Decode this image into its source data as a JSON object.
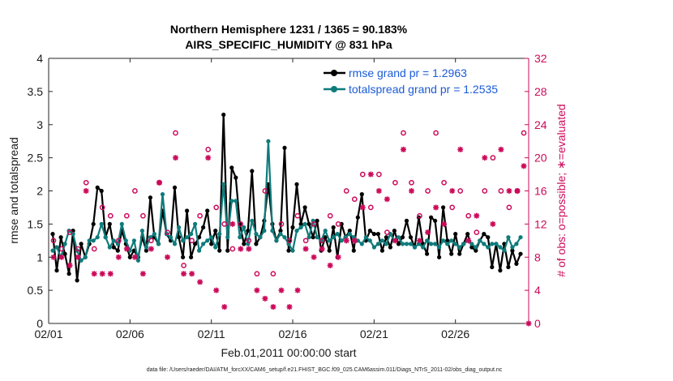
{
  "chart_data": {
    "type": "line",
    "title": "Northern Hemisphere 1231 / 1365 = 90.183%",
    "subtitle": "AIRS_SPECIFIC_HUMIDITY @ 831 hPa",
    "xlabel": "Feb.01,2011 00:00:00 start",
    "ylabel": "rmse and totalspread",
    "y2label": "# of obs: o=possible; ∗=evaluated",
    "xlim": [
      0,
      29.5
    ],
    "ylim": [
      0,
      4
    ],
    "y2lim": [
      0,
      32
    ],
    "xticks": [
      0,
      5,
      10,
      15,
      20,
      25
    ],
    "xtick_labels": [
      "02/01",
      "02/06",
      "02/11",
      "02/16",
      "02/21",
      "02/26"
    ],
    "yticks": [
      0,
      0.5,
      1,
      1.5,
      2,
      2.5,
      3,
      3.5,
      4
    ],
    "ytick_labels": [
      "0",
      "0.5",
      "1",
      "1.5",
      "2",
      "2.5",
      "3",
      "3.5",
      "4"
    ],
    "y2ticks": [
      0,
      4,
      8,
      12,
      16,
      20,
      24,
      28,
      32
    ],
    "y2tick_labels": [
      "0",
      "4",
      "8",
      "12",
      "16",
      "20",
      "24",
      "28",
      "32"
    ],
    "legend": {
      "position": "top-right",
      "entries": [
        "rmse grand pr = 1.2963",
        "totalspread grand pr = 1.2535"
      ]
    },
    "colors": {
      "rmse": "#000000",
      "spread": "#0f7b7b",
      "obs": "#cc0a5a",
      "legend_text": "#1a5bd6"
    },
    "x": [
      0.25,
      0.5,
      0.75,
      1,
      1.25,
      1.5,
      1.75,
      2,
      2.25,
      2.5,
      2.75,
      3,
      3.25,
      3.5,
      3.75,
      4,
      4.25,
      4.5,
      4.75,
      5,
      5.25,
      5.5,
      5.75,
      6,
      6.25,
      6.5,
      6.75,
      7,
      7.25,
      7.5,
      7.75,
      8,
      8.25,
      8.5,
      8.75,
      9,
      9.25,
      9.5,
      9.75,
      10,
      10.25,
      10.5,
      10.75,
      11,
      11.25,
      11.5,
      11.75,
      12,
      12.25,
      12.5,
      12.75,
      13,
      13.25,
      13.5,
      13.75,
      14,
      14.25,
      14.5,
      14.75,
      15,
      15.25,
      15.5,
      15.75,
      16,
      16.25,
      16.5,
      16.75,
      17,
      17.25,
      17.5,
      17.75,
      18,
      18.25,
      18.5,
      18.75,
      19,
      19.25,
      19.5,
      19.75,
      20,
      20.25,
      20.5,
      20.75,
      21,
      21.25,
      21.5,
      21.75,
      22,
      22.25,
      22.5,
      22.75,
      23,
      23.25,
      23.5,
      23.75,
      24,
      24.25,
      24.5,
      24.75,
      25,
      25.25,
      25.5,
      25.75,
      26,
      26.25,
      26.5,
      26.75,
      27,
      27.25,
      27.5,
      27.75,
      28,
      28.25,
      28.5,
      28.75,
      29
    ],
    "series": [
      {
        "name": "rmse",
        "values": [
          1.35,
          0.8,
          1.3,
          1.05,
          0.75,
          1.4,
          0.65,
          1.2,
          1.0,
          1.2,
          1.5,
          2.05,
          2.0,
          1.3,
          1.5,
          1.15,
          1.1,
          1.4,
          1.2,
          1.0,
          1.1,
          1.0,
          1.3,
          1.1,
          1.9,
          1.3,
          1.2,
          1.7,
          1.35,
          1.25,
          2.05,
          1.3,
          1.0,
          1.7,
          1.0,
          1.2,
          1.3,
          1.45,
          1.7,
          1.2,
          1.4,
          1.1,
          3.15,
          1.1,
          2.35,
          2.2,
          1.5,
          1.2,
          1.4,
          2.3,
          1.2,
          1.3,
          1.55,
          2.1,
          1.5,
          1.25,
          1.4,
          2.65,
          1.1,
          1.45,
          2.1,
          1.5,
          1.75,
          1.5,
          1.3,
          1.55,
          1.1,
          1.3,
          1.1,
          1.45,
          1.0,
          1.5,
          1.3,
          1.4,
          1.1,
          1.6,
          1.95,
          1.25,
          1.4,
          1.35,
          1.35,
          1.1,
          1.3,
          1.15,
          1.4,
          1.2,
          1.3,
          1.55,
          1.3,
          1.15,
          1.6,
          1.2,
          1.05,
          1.6,
          1.55,
          1.0,
          1.75,
          1.25,
          1.05,
          1.35,
          1.05,
          1.2,
          1.35,
          1.15,
          1.1,
          1.25,
          1.35,
          1.3,
          0.85,
          1.2,
          0.8,
          1.2,
          0.85,
          1.1,
          0.9,
          1.05
        ]
      },
      {
        "name": "totalspread",
        "values": [
          1.1,
          1.15,
          1.0,
          1.2,
          1.4,
          1.35,
          1.1,
          0.95,
          1.0,
          1.25,
          1.25,
          1.3,
          1.5,
          1.3,
          1.15,
          1.25,
          1.2,
          1.5,
          1.25,
          1.1,
          1.25,
          0.95,
          1.4,
          1.15,
          1.3,
          1.35,
          1.2,
          1.95,
          1.35,
          1.3,
          1.2,
          1.45,
          1.25,
          1.3,
          1.35,
          1.5,
          1.1,
          1.2,
          1.25,
          1.3,
          1.15,
          1.35,
          2.1,
          1.3,
          1.85,
          1.85,
          1.3,
          1.45,
          1.2,
          1.55,
          1.35,
          1.3,
          1.4,
          2.75,
          1.4,
          1.25,
          1.35,
          1.3,
          1.2,
          1.1,
          1.4,
          1.45,
          1.5,
          1.3,
          1.55,
          1.3,
          1.25,
          1.4,
          1.25,
          1.3,
          1.35,
          1.25,
          1.3,
          1.35,
          1.3,
          1.25,
          1.2,
          1.3,
          1.25,
          1.15,
          1.2,
          1.25,
          1.2,
          1.35,
          1.25,
          1.3,
          1.2,
          1.2,
          1.2,
          1.15,
          1.2,
          1.15,
          1.25,
          1.2,
          1.2,
          1.15,
          1.25,
          1.2,
          1.25,
          1.2,
          1.15,
          1.2,
          1.25,
          1.2,
          1.15,
          1.25,
          1.2,
          1.15,
          1.2,
          1.2,
          1.15,
          1.1,
          1.3,
          1.15,
          1.2,
          1.3
        ]
      }
    ],
    "obs_possible": [
      [
        0.3,
        10
      ],
      [
        0.8,
        9
      ],
      [
        1.3,
        11
      ],
      [
        1.8,
        9
      ],
      [
        2.3,
        17
      ],
      [
        2.8,
        9
      ],
      [
        3.3,
        14
      ],
      [
        3.8,
        13
      ],
      [
        4.3,
        10
      ],
      [
        4.8,
        13
      ],
      [
        5.3,
        16
      ],
      [
        5.8,
        13
      ],
      [
        6.3,
        10
      ],
      [
        6.8,
        17
      ],
      [
        7.3,
        11
      ],
      [
        7.8,
        23
      ],
      [
        8.3,
        7
      ],
      [
        8.8,
        10
      ],
      [
        9.3,
        13
      ],
      [
        9.8,
        21
      ],
      [
        10.3,
        14
      ],
      [
        10.8,
        12
      ],
      [
        11.3,
        9
      ],
      [
        11.8,
        12
      ],
      [
        12.3,
        10
      ],
      [
        12.8,
        6
      ],
      [
        13.3,
        16
      ],
      [
        13.8,
        6
      ],
      [
        14.3,
        12
      ],
      [
        14.8,
        10
      ],
      [
        15.3,
        13
      ],
      [
        15.8,
        10
      ],
      [
        16.3,
        12
      ],
      [
        16.8,
        10
      ],
      [
        17.3,
        13
      ],
      [
        17.8,
        12
      ],
      [
        18.3,
        16
      ],
      [
        18.8,
        15
      ],
      [
        19.3,
        18
      ],
      [
        19.8,
        14
      ],
      [
        20.3,
        18
      ],
      [
        20.8,
        11
      ],
      [
        21.3,
        17
      ],
      [
        21.8,
        23
      ],
      [
        22.3,
        17
      ],
      [
        22.8,
        13
      ],
      [
        23.3,
        16
      ],
      [
        23.8,
        23
      ],
      [
        24.3,
        17
      ],
      [
        24.8,
        14
      ],
      [
        25.3,
        16
      ],
      [
        25.8,
        13
      ],
      [
        26.3,
        11
      ],
      [
        26.8,
        16
      ],
      [
        27.3,
        20
      ],
      [
        27.8,
        16
      ],
      [
        28.3,
        14
      ],
      [
        28.8,
        16
      ],
      [
        29.2,
        23
      ]
    ],
    "obs_evaluated": [
      [
        0.3,
        8
      ],
      [
        0.8,
        8
      ],
      [
        1.3,
        7
      ],
      [
        1.8,
        8
      ],
      [
        2.3,
        16
      ],
      [
        2.8,
        6
      ],
      [
        3.3,
        6
      ],
      [
        3.8,
        6
      ],
      [
        4.3,
        8
      ],
      [
        4.8,
        9
      ],
      [
        5.3,
        8
      ],
      [
        5.8,
        6
      ],
      [
        6.3,
        9
      ],
      [
        6.8,
        17
      ],
      [
        7.3,
        8
      ],
      [
        7.8,
        20
      ],
      [
        8.3,
        6
      ],
      [
        8.8,
        6
      ],
      [
        9.3,
        5
      ],
      [
        9.8,
        20
      ],
      [
        10.3,
        4
      ],
      [
        10.8,
        2
      ],
      [
        11.3,
        12
      ],
      [
        11.8,
        9
      ],
      [
        12.3,
        9
      ],
      [
        12.8,
        4
      ],
      [
        13.3,
        3
      ],
      [
        13.8,
        2
      ],
      [
        14.3,
        4
      ],
      [
        14.8,
        2
      ],
      [
        15.3,
        4
      ],
      [
        15.8,
        9
      ],
      [
        16.3,
        8
      ],
      [
        16.8,
        9
      ],
      [
        17.3,
        7
      ],
      [
        17.8,
        8
      ],
      [
        18.3,
        10
      ],
      [
        18.8,
        10
      ],
      [
        19.3,
        14
      ],
      [
        19.8,
        18
      ],
      [
        20.3,
        16
      ],
      [
        20.8,
        15
      ],
      [
        21.3,
        10
      ],
      [
        21.8,
        21
      ],
      [
        22.3,
        16
      ],
      [
        22.8,
        10
      ],
      [
        23.3,
        11
      ],
      [
        23.8,
        14
      ],
      [
        24.3,
        12
      ],
      [
        24.8,
        16
      ],
      [
        25.3,
        21
      ],
      [
        25.8,
        10
      ],
      [
        26.3,
        13
      ],
      [
        26.8,
        20
      ],
      [
        27.3,
        12
      ],
      [
        27.8,
        21
      ],
      [
        28.3,
        16
      ],
      [
        28.8,
        16
      ],
      [
        29.2,
        19
      ],
      [
        29.5,
        0
      ]
    ]
  },
  "footer": {
    "text": "data file: /Users/raeder/DAI/ATM_forcXX/CAM6_setup/f.e21.FHIST_BGC.f09_025.CAM6assim.011/Diags_NTrS_2011-02/obs_diag_output.nc"
  }
}
